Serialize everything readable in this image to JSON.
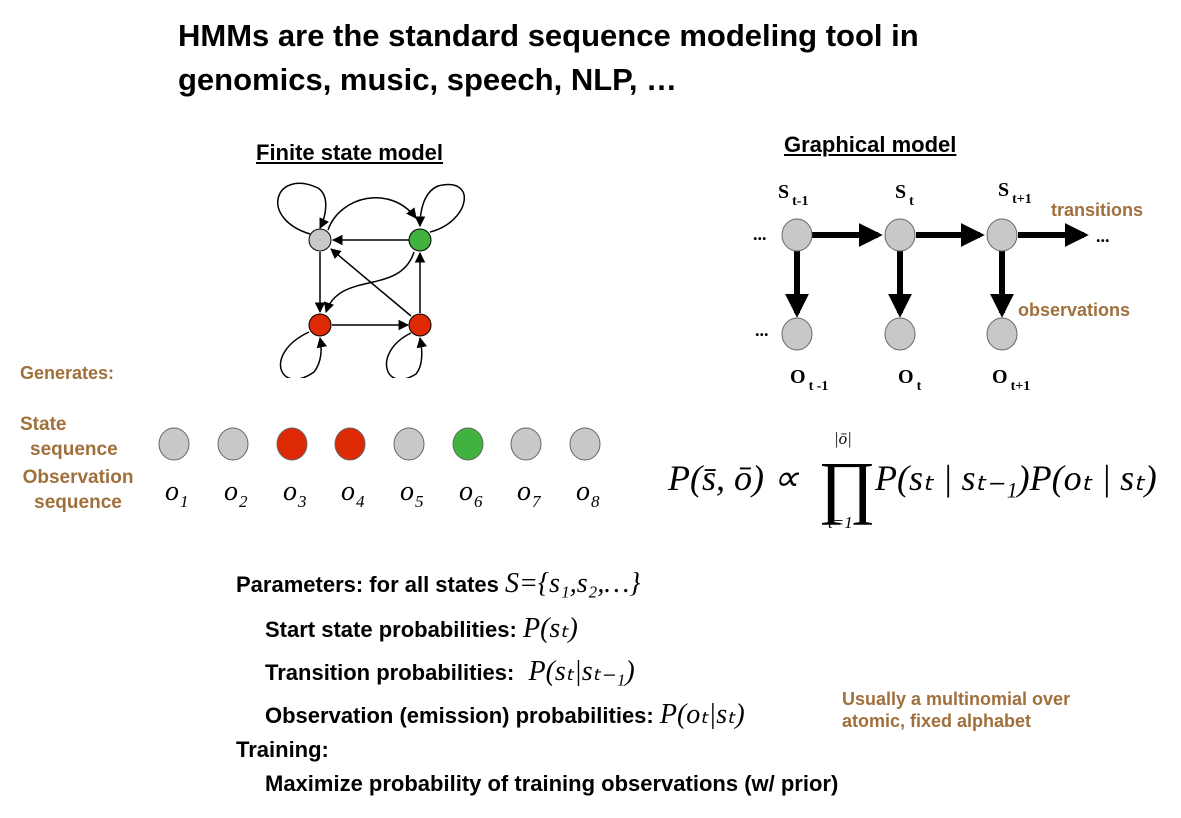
{
  "title": {
    "line1": "HMMs are the standard sequence modeling tool in",
    "line2": "genomics, music, speech, NLP, …"
  },
  "fsm": {
    "heading": "Finite state model"
  },
  "graphical": {
    "heading": "Graphical model",
    "transitions_label": "transitions",
    "observations_label": "observations",
    "state_labels": [
      {
        "base": "S",
        "sub": "t-1"
      },
      {
        "base": "S",
        "sub": "t"
      },
      {
        "base": "S",
        "sub": "t+1"
      }
    ],
    "obs_labels": [
      {
        "base": "O",
        "sub": "t -1"
      },
      {
        "base": "O",
        "sub": "t"
      },
      {
        "base": "O",
        "sub": "t+1"
      }
    ],
    "ellipsis": "..."
  },
  "generates": {
    "label": "Generates:",
    "state_seq_line1": "State",
    "state_seq_line2": "sequence",
    "obs_seq_line1": "Observation",
    "obs_seq_line2": "sequence",
    "state_sequence": [
      "gray",
      "gray",
      "red",
      "red",
      "gray",
      "green",
      "gray",
      "gray"
    ],
    "obs_base": "o",
    "obs_subs": [
      "1",
      "2",
      "3",
      "4",
      "5",
      "6",
      "7",
      "8"
    ]
  },
  "formula": {
    "lhs": "P(s̄, ō) ∝",
    "product": "∏",
    "upper_limit": "|ō|",
    "lower_limit": "t=1",
    "rhs": "P(sₜ | sₜ₋₁)P(oₜ | sₜ)"
  },
  "params": {
    "parameters_label": "Parameters: for all states",
    "parameters_math": "S={s₁,s₂,…}",
    "start_label": "Start state probabilities:",
    "start_math": "P(sₜ)",
    "transition_label": "Transition probabilities:",
    "transition_math": "P(sₜ|sₜ₋₁)",
    "emission_label": "Observation (emission) probabilities:",
    "emission_math": "P(oₜ|sₜ)",
    "emission_note_line1": "Usually a multinomial over",
    "emission_note_line2": "atomic, fixed alphabet",
    "training_label": "Training:",
    "training_text": "Maximize probability of training observations (w/ prior)"
  },
  "colors": {
    "gray_node": "#c8c8c8",
    "red_node": "#dd2a05",
    "green_node": "#3fb23f",
    "accent_brown": "#a0703c"
  }
}
